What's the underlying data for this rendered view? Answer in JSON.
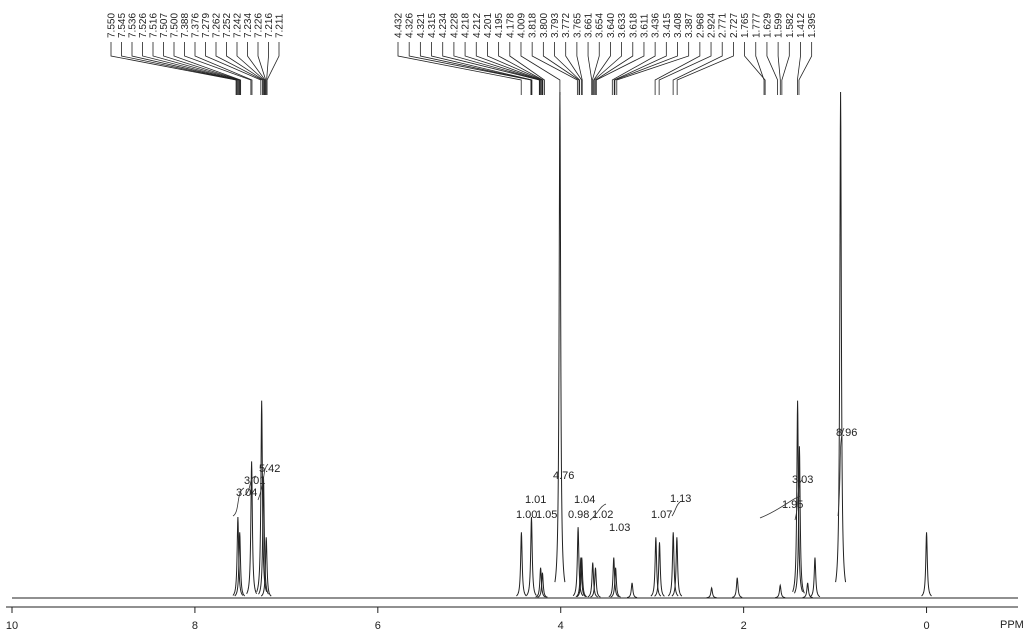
{
  "chart_data": {
    "type": "nmr",
    "xlabel": "PPM",
    "xlim": [
      10,
      -1.0
    ],
    "xticks": [
      10,
      8,
      6,
      4,
      2,
      0
    ],
    "ylim": [
      0,
      100
    ],
    "color": "#222222",
    "peak_labels": [
      {
        "value": 7.55,
        "label": "7.550"
      },
      {
        "value": 7.545,
        "label": "7.545"
      },
      {
        "value": 7.536,
        "label": "7.536"
      },
      {
        "value": 7.526,
        "label": "7.526"
      },
      {
        "value": 7.516,
        "label": "7.516"
      },
      {
        "value": 7.507,
        "label": "7.507"
      },
      {
        "value": 7.5,
        "label": "7.500"
      },
      {
        "value": 7.388,
        "label": "7.388"
      },
      {
        "value": 7.376,
        "label": "7.376"
      },
      {
        "value": 7.279,
        "label": "7.279"
      },
      {
        "value": 7.262,
        "label": "7.262"
      },
      {
        "value": 7.252,
        "label": "7.252"
      },
      {
        "value": 7.242,
        "label": "7.242"
      },
      {
        "value": 7.234,
        "label": "7.234"
      },
      {
        "value": 7.226,
        "label": "7.226"
      },
      {
        "value": 7.216,
        "label": "7.216"
      },
      {
        "value": 7.211,
        "label": "7.211"
      },
      {
        "value": 4.432,
        "label": "4.432"
      },
      {
        "value": 4.326,
        "label": "4.326"
      },
      {
        "value": 4.321,
        "label": "4.321"
      },
      {
        "value": 4.315,
        "label": "4.315"
      },
      {
        "value": 4.234,
        "label": "4.234"
      },
      {
        "value": 4.228,
        "label": "4.228"
      },
      {
        "value": 4.218,
        "label": "4.218"
      },
      {
        "value": 4.212,
        "label": "4.212"
      },
      {
        "value": 4.201,
        "label": "4.201"
      },
      {
        "value": 4.195,
        "label": "4.195"
      },
      {
        "value": 4.178,
        "label": "4.178"
      },
      {
        "value": 4.009,
        "label": "4.009"
      },
      {
        "value": 3.818,
        "label": "3.818"
      },
      {
        "value": 3.8,
        "label": "3.800"
      },
      {
        "value": 3.793,
        "label": "3.793"
      },
      {
        "value": 3.772,
        "label": "3.772"
      },
      {
        "value": 3.765,
        "label": "3.765"
      },
      {
        "value": 3.661,
        "label": "3.661"
      },
      {
        "value": 3.654,
        "label": "3.654"
      },
      {
        "value": 3.64,
        "label": "3.640"
      },
      {
        "value": 3.633,
        "label": "3.633"
      },
      {
        "value": 3.618,
        "label": "3.618"
      },
      {
        "value": 3.611,
        "label": "3.611"
      },
      {
        "value": 3.436,
        "label": "3.436"
      },
      {
        "value": 3.415,
        "label": "3.415"
      },
      {
        "value": 3.408,
        "label": "3.408"
      },
      {
        "value": 3.387,
        "label": "3.387"
      },
      {
        "value": 2.968,
        "label": "2.968"
      },
      {
        "value": 2.924,
        "label": "2.924"
      },
      {
        "value": 2.771,
        "label": "2.771"
      },
      {
        "value": 2.727,
        "label": "2.727"
      },
      {
        "value": 1.765,
        "label": "1.765"
      },
      {
        "value": 1.777,
        "label": "1.777"
      },
      {
        "value": 1.629,
        "label": "1.629"
      },
      {
        "value": 1.599,
        "label": "1.599"
      },
      {
        "value": 1.582,
        "label": "1.582"
      },
      {
        "value": 1.412,
        "label": "1.412"
      },
      {
        "value": 1.395,
        "label": "1.395"
      }
    ],
    "peaks": {
      "x": [
        7.53,
        7.51,
        7.38,
        7.27,
        7.25,
        7.22,
        4.43,
        4.32,
        4.22,
        4.2,
        4.009,
        3.81,
        3.78,
        3.77,
        3.65,
        3.62,
        3.42,
        3.4,
        3.22,
        2.96,
        2.92,
        2.77,
        2.73,
        2.35,
        2.07,
        1.6,
        1.41,
        1.39,
        1.3,
        1.22,
        0.94,
        0.0
      ],
      "values": [
        16,
        13,
        27,
        39,
        24,
        12,
        13,
        16,
        6,
        5,
        100,
        14,
        8,
        8,
        7,
        6,
        8,
        6,
        3,
        12,
        11,
        13,
        12,
        2,
        4,
        2.5,
        39,
        30,
        3,
        8,
        100,
        13
      ]
    },
    "integrals": [
      "3.04",
      "3.01",
      "5.42",
      "4.76",
      "1.01",
      "1.00",
      "1.05",
      "1.04",
      "0.98",
      "1.02",
      "1.03",
      "1.07",
      "1.13",
      "1.95",
      "3.03",
      "8.96"
    ]
  }
}
